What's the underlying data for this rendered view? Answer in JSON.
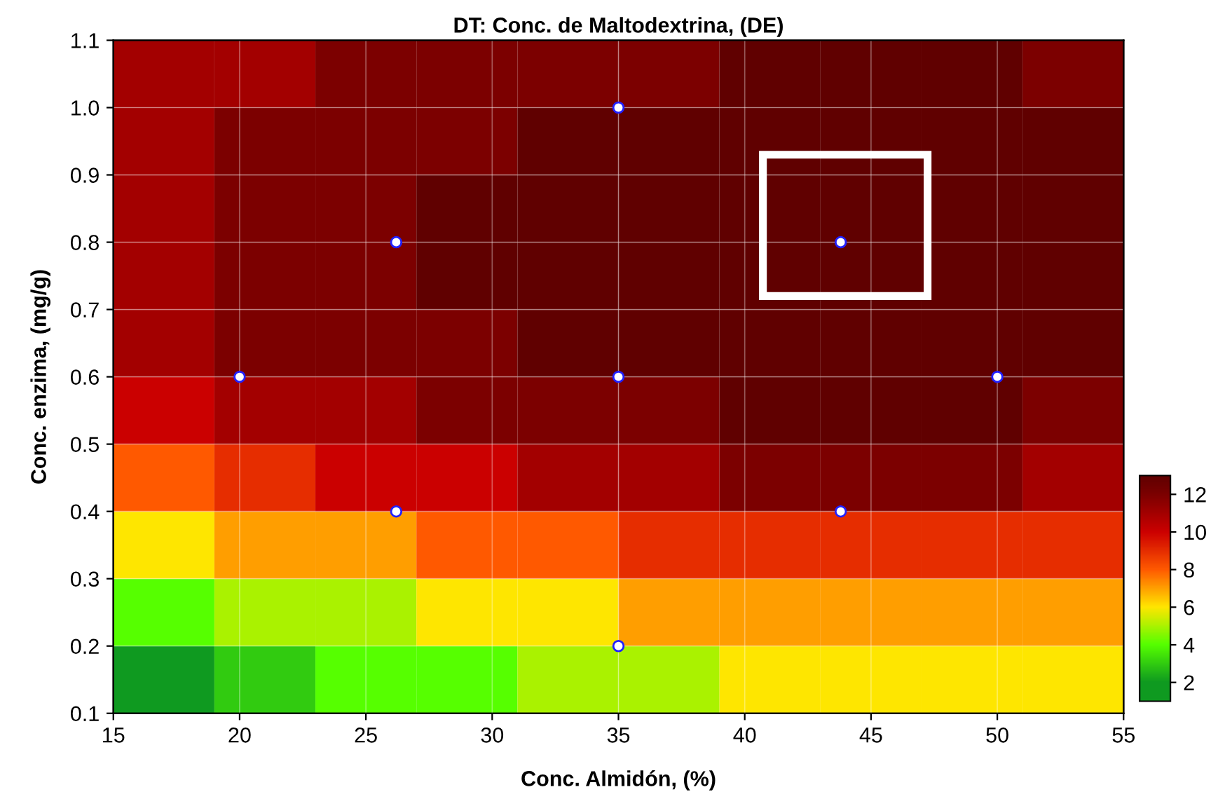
{
  "chart_data": [
    {
      "type": "heatmap",
      "clim": [
        1,
        13
      ],
      "cticks": [
        2,
        4,
        6,
        8,
        10,
        12
      ],
      "categories": [
        null,
        null,
        null,
        null,
        null,
        null,
        null,
        null,
        null,
        null
      ],
      "y_categories": [
        null,
        null,
        null,
        null,
        null,
        null,
        null,
        null,
        null,
        null
      ],
      "cells": [
        [
          11,
          11,
          12,
          12,
          12,
          12,
          13,
          13,
          13,
          12
        ],
        [
          11,
          12,
          12,
          12,
          13,
          13,
          13,
          13,
          13,
          13
        ],
        [
          11,
          12,
          12,
          13,
          13,
          13,
          13,
          13,
          13,
          13
        ],
        [
          11,
          12,
          12,
          13,
          13,
          13,
          13,
          13,
          13,
          13
        ],
        [
          11,
          12,
          12,
          12,
          13,
          13,
          13,
          13,
          13,
          13
        ],
        [
          10,
          11,
          11,
          12,
          12,
          12,
          13,
          13,
          13,
          12
        ],
        [
          8,
          9,
          10,
          10,
          11,
          11,
          12,
          12,
          12,
          11
        ],
        [
          6,
          7,
          7,
          8,
          8,
          9,
          9,
          9,
          9,
          9
        ],
        [
          4,
          5,
          5,
          6,
          6,
          7,
          7,
          7,
          7,
          7
        ],
        [
          2,
          3,
          4,
          4,
          5,
          5,
          6,
          6,
          6,
          6
        ]
      ]
    },
    {
      "type": "scatter",
      "title": "DT: Conc. de Maltodextrina, (DE)",
      "xlabel": "Conc. Almidón, (%)",
      "ylabel": "Conc. enzima, (mg/g)",
      "xlim": [
        15,
        55
      ],
      "xticks": [
        15,
        20,
        25,
        30,
        35,
        40,
        45,
        50,
        55
      ],
      "ylim": [
        0.1,
        1.1
      ],
      "yticks": [
        0.1,
        0.2,
        0.3,
        0.4,
        0.5,
        0.6,
        0.7,
        0.8,
        0.9,
        {
          "value": 1,
          "label": "1.0"
        },
        1.1
      ],
      "grid": true,
      "marker": "circle",
      "x": [
        20,
        26.2,
        26.2,
        35,
        35,
        35,
        43.8,
        43.8,
        50
      ],
      "series": [
        {
          "color": "#ffffff",
          "values": [
            0.6,
            0.8,
            0.4,
            1.0,
            0.6,
            0.2,
            0.8,
            0.4,
            0.6
          ]
        }
      ]
    }
  ]
}
